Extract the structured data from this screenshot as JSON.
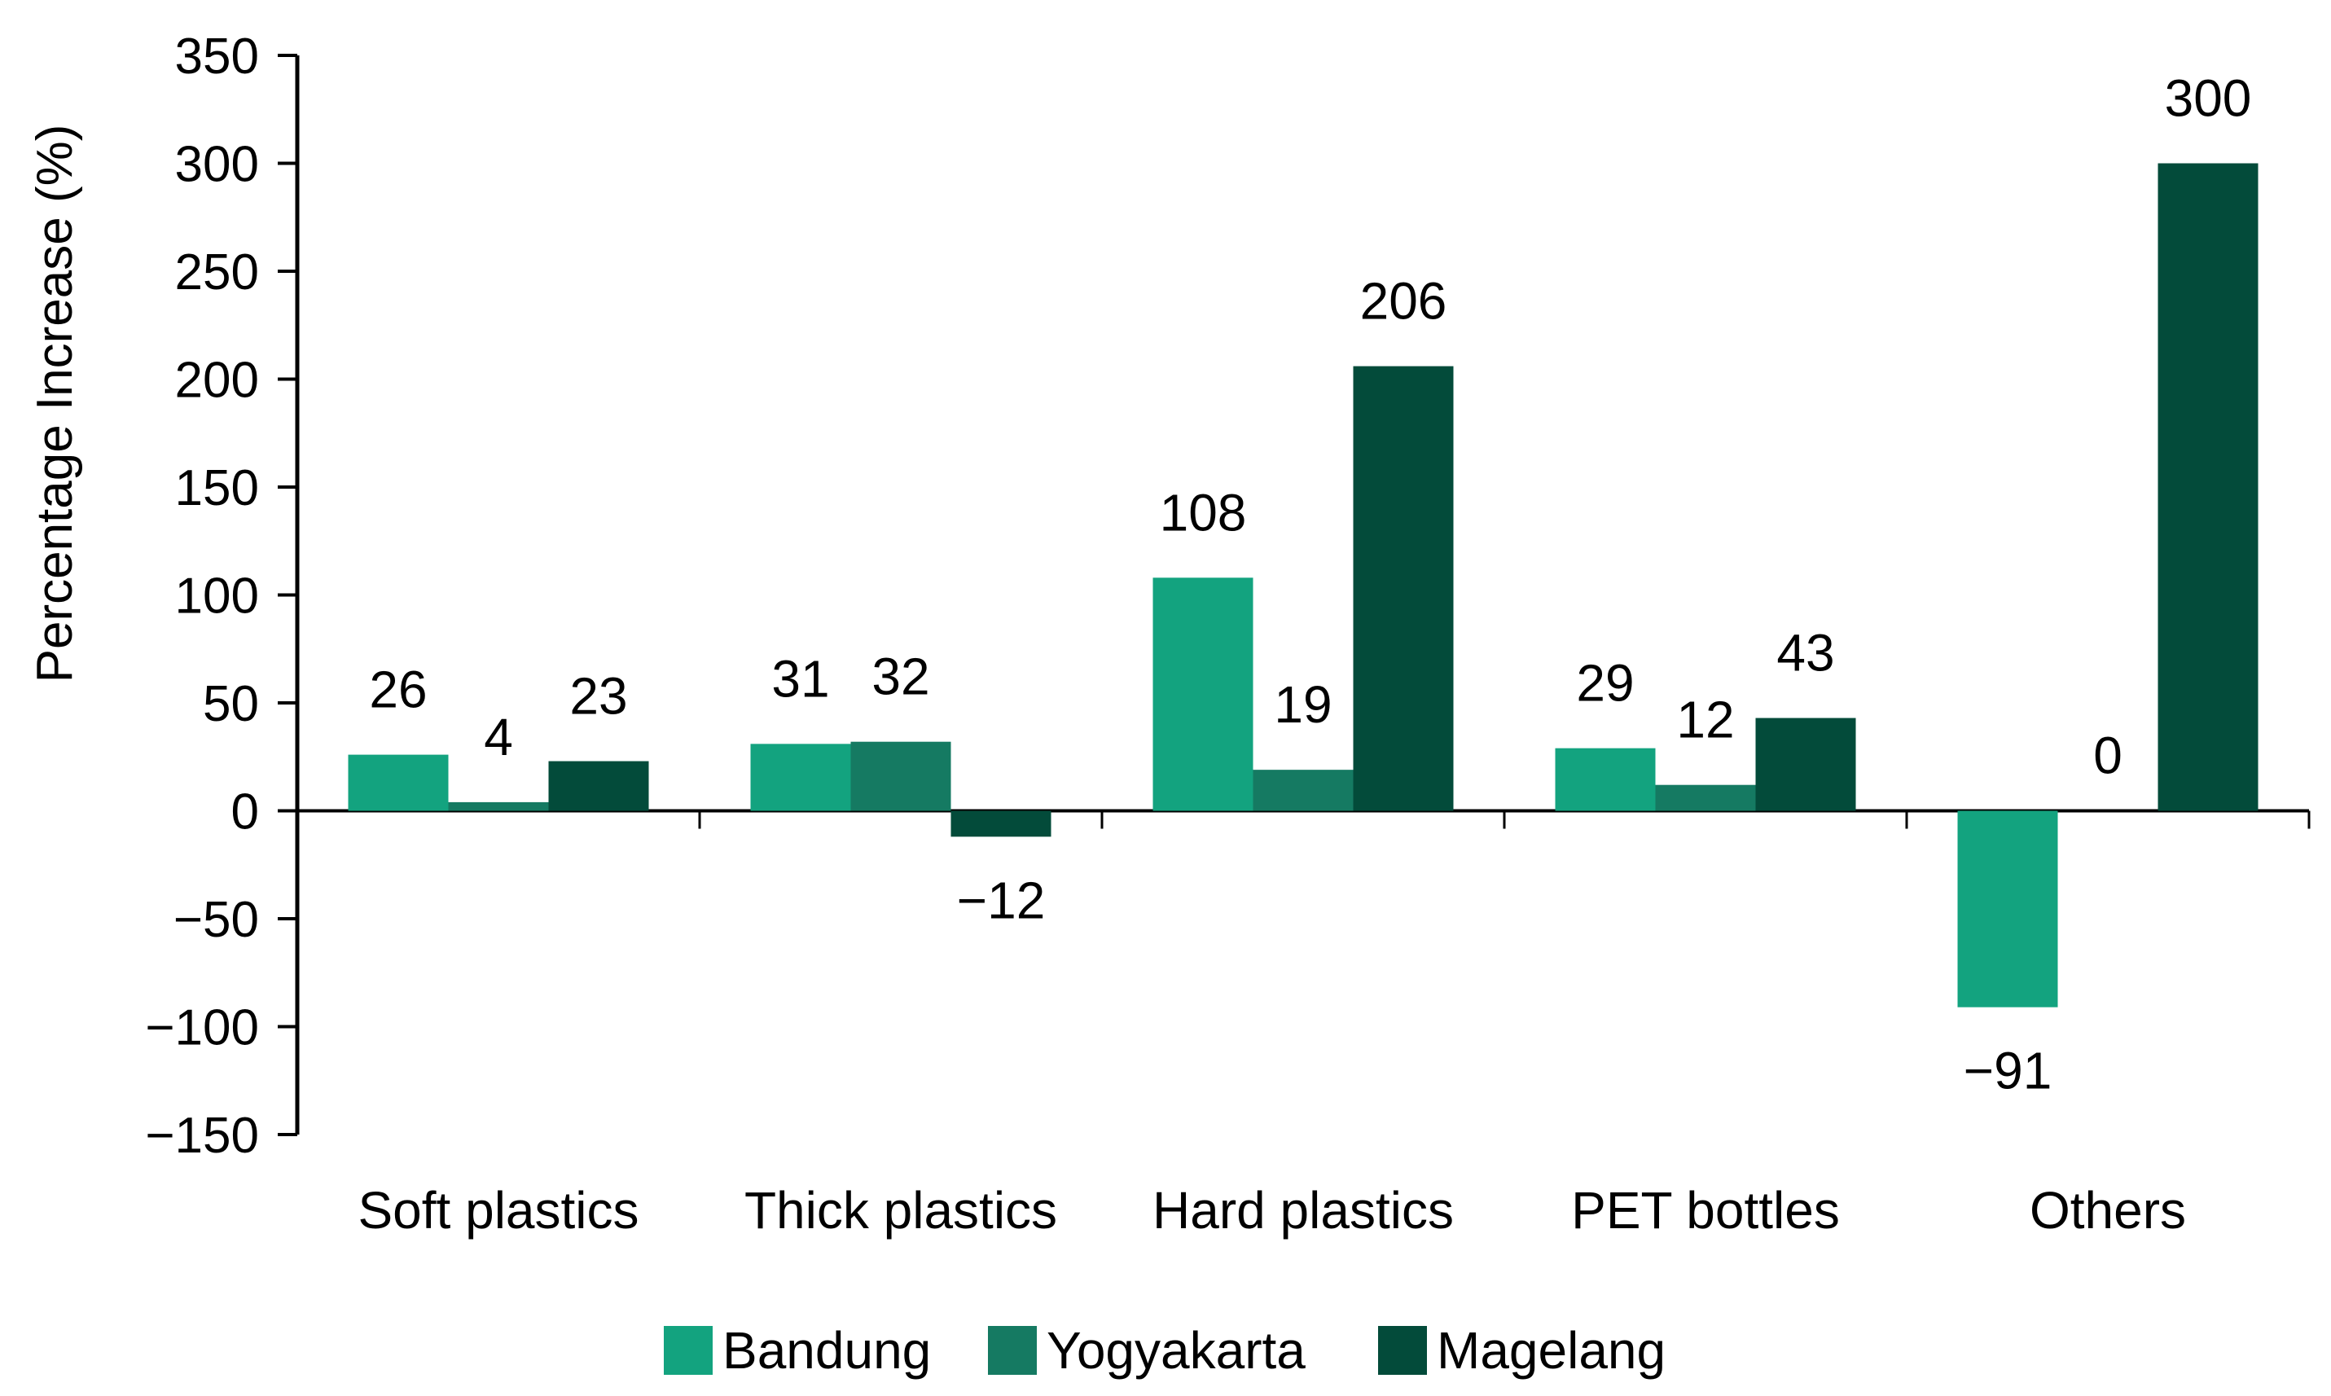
{
  "chart_data": {
    "type": "bar",
    "ylabel": "Percentage Increase (%)",
    "xlabel": "",
    "categories": [
      "Soft plastics",
      "Thick plastics",
      "Hard plastics",
      "PET bottles",
      "Others"
    ],
    "ylim": [
      -150,
      350
    ],
    "yticks": [
      350,
      300,
      250,
      200,
      150,
      100,
      50,
      0,
      -50,
      -100,
      -150
    ],
    "ytick_labels": [
      "350",
      "300",
      "250",
      "200",
      "150",
      "100",
      "50",
      "0",
      "−50",
      "−100",
      "−150"
    ],
    "grid": false,
    "legend_position": "bottom",
    "series": [
      {
        "name": "Bandung",
        "color": "#13a37f",
        "values": [
          26,
          31,
          108,
          29,
          -91
        ],
        "labels": [
          "26",
          "31",
          "108",
          "29",
          "−91"
        ]
      },
      {
        "name": "Yogyakarta",
        "color": "#157a62",
        "values": [
          4,
          32,
          19,
          12,
          0
        ],
        "labels": [
          "4",
          "32",
          "19",
          "12",
          "0"
        ]
      },
      {
        "name": "Magelang",
        "color": "#034b3a",
        "values": [
          23,
          -12,
          206,
          43,
          300
        ],
        "labels": [
          "23",
          "−12",
          "206",
          "43",
          "300"
        ]
      }
    ]
  }
}
